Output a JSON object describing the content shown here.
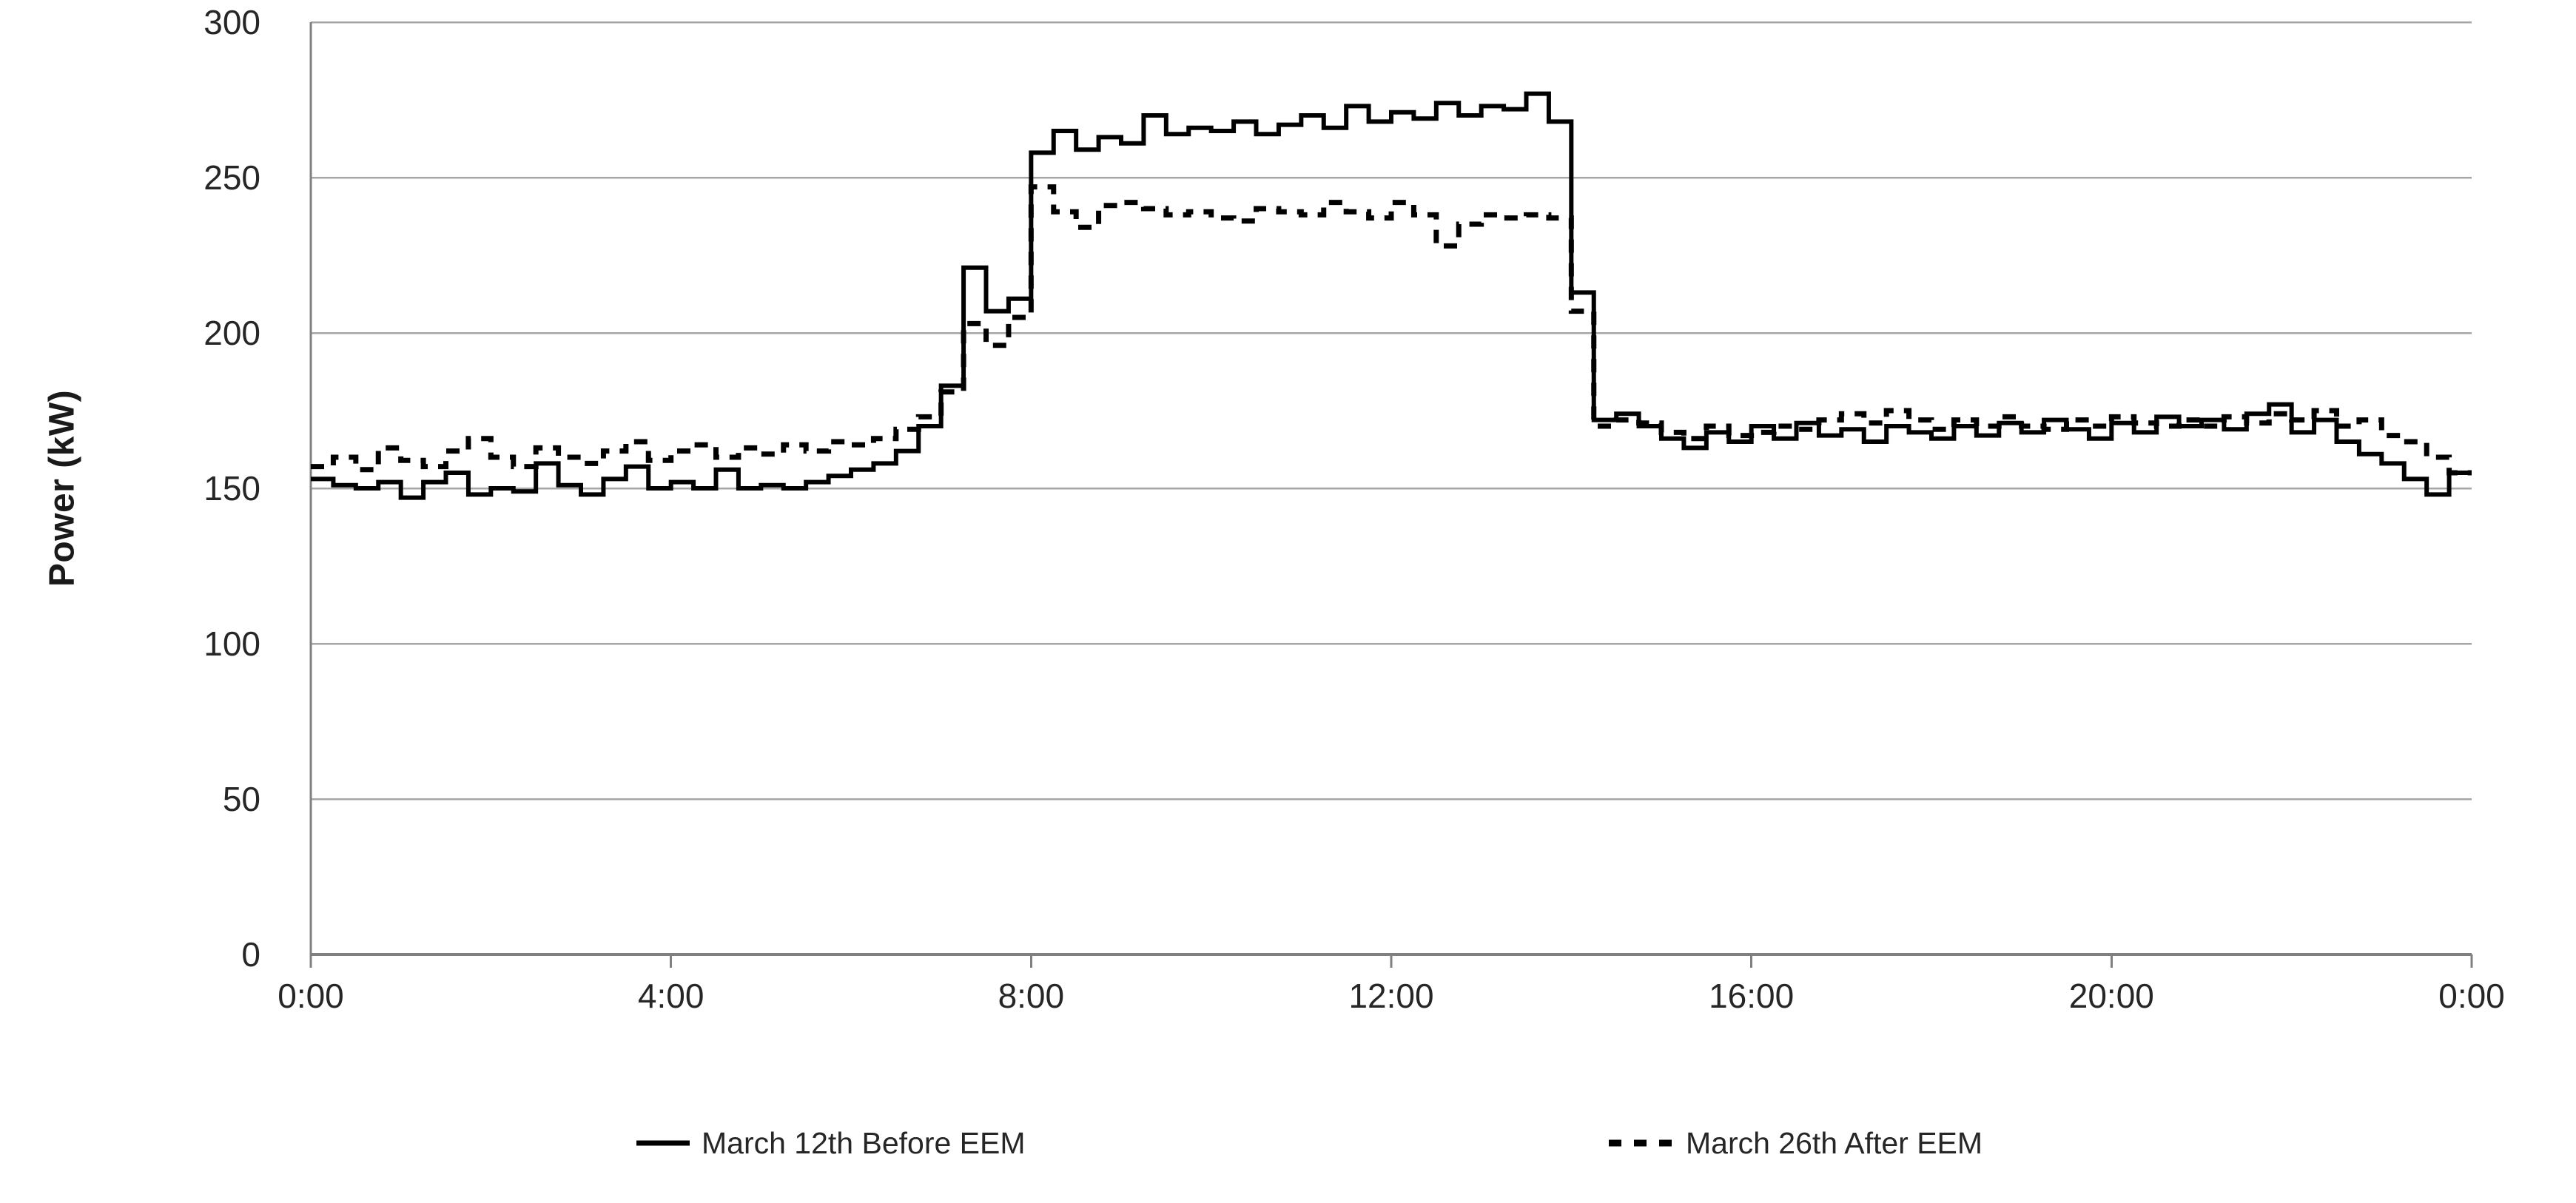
{
  "chart_data": {
    "type": "line",
    "subtype": "step",
    "title": "",
    "xlabel": "",
    "ylabel": "Power (kW)",
    "ylim": [
      0,
      300
    ],
    "yticks": [
      0,
      50,
      100,
      150,
      200,
      250,
      300
    ],
    "xtick_hours": [
      0,
      4,
      8,
      12,
      16,
      20,
      24
    ],
    "xtick_labels": [
      "0:00",
      "4:00",
      "8:00",
      "12:00",
      "16:00",
      "20:00",
      "0:00"
    ],
    "x_range_hours": [
      0,
      24
    ],
    "x_step_minutes": 15,
    "grid": "horizontal",
    "legend_position": "bottom",
    "series": [
      {
        "name": "March 12th Before EEM",
        "style": "solid",
        "color": "#000000",
        "values": [
          153,
          151,
          150,
          152,
          147,
          152,
          155,
          148,
          150,
          149,
          158,
          151,
          148,
          153,
          157,
          150,
          152,
          150,
          156,
          150,
          151,
          150,
          152,
          154,
          156,
          158,
          162,
          170,
          183,
          221,
          207,
          211,
          258,
          265,
          259,
          263,
          261,
          270,
          264,
          266,
          265,
          268,
          264,
          267,
          270,
          266,
          273,
          268,
          271,
          269,
          274,
          270,
          273,
          272,
          277,
          268,
          213,
          172,
          174,
          170,
          166,
          163,
          168,
          165,
          170,
          166,
          171,
          167,
          169,
          165,
          170,
          168,
          166,
          170,
          167,
          171,
          168,
          172,
          169,
          166,
          171,
          168,
          173,
          170,
          172,
          169,
          174,
          177,
          168,
          172,
          165,
          161,
          158,
          153,
          148,
          155
        ]
      },
      {
        "name": "March 26th After EEM",
        "style": "dashed",
        "color": "#000000",
        "values": [
          157,
          160,
          156,
          163,
          159,
          157,
          162,
          166,
          160,
          157,
          163,
          160,
          158,
          162,
          165,
          159,
          162,
          164,
          160,
          163,
          161,
          164,
          162,
          165,
          164,
          166,
          169,
          173,
          181,
          203,
          196,
          205,
          247,
          239,
          234,
          241,
          242,
          240,
          238,
          239,
          237,
          236,
          240,
          239,
          238,
          242,
          239,
          237,
          242,
          238,
          228,
          235,
          238,
          237,
          238,
          237,
          207,
          170,
          172,
          171,
          168,
          166,
          170,
          167,
          168,
          170,
          169,
          172,
          174,
          171,
          175,
          172,
          169,
          172,
          170,
          173,
          170,
          169,
          172,
          170,
          173,
          171,
          170,
          172,
          170,
          173,
          171,
          174,
          172,
          175,
          170,
          172,
          167,
          165,
          160,
          155
        ]
      }
    ],
    "colors": {
      "gridline": "#a6a6a6",
      "axis": "#808080",
      "tick_text": "#262626",
      "series_line": "#000000",
      "background": "#ffffff"
    }
  }
}
